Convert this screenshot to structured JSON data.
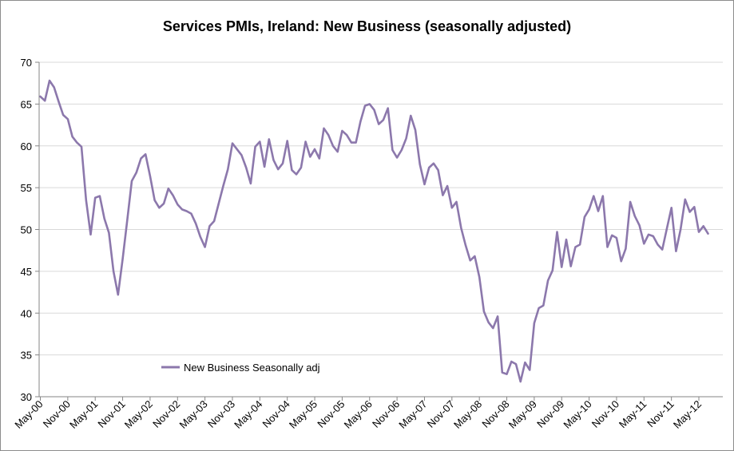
{
  "chart_data": {
    "type": "line",
    "title": "Services PMIs, Ireland: New Business (seasonally adjusted)",
    "xlabel": "",
    "ylabel": "",
    "ylim": [
      30,
      70
    ],
    "y_ticks": [
      "30",
      "35",
      "40",
      "45",
      "50",
      "55",
      "60",
      "65",
      "70"
    ],
    "x_tick_labels": [
      "May-00",
      "Nov-00",
      "May-01",
      "Nov-01",
      "May-02",
      "Nov-02",
      "May-03",
      "Nov-03",
      "May-04",
      "Nov-04",
      "May-05",
      "Nov-05",
      "May-06",
      "Nov-06",
      "May-07",
      "Nov-07",
      "May-08",
      "Nov-08",
      "May-09",
      "Nov-09",
      "May-10",
      "Nov-10",
      "May-11",
      "Nov-11",
      "May-12"
    ],
    "grid": true,
    "legend_position": "lower-left",
    "line_color": "#8C78AC",
    "series": [
      {
        "name": "New Business Seasonally adj",
        "start": "May-00",
        "values": [
          65.9,
          65.4,
          67.8,
          67.0,
          65.3,
          63.7,
          63.2,
          61.1,
          60.4,
          59.9,
          53.5,
          49.4,
          53.8,
          54.0,
          51.3,
          49.6,
          45.0,
          42.2,
          46.5,
          51.1,
          55.8,
          56.8,
          58.5,
          59.0,
          56.4,
          53.5,
          52.6,
          53.1,
          54.9,
          54.1,
          53.0,
          52.4,
          52.2,
          51.9,
          50.7,
          49.1,
          47.9,
          50.4,
          51.0,
          53.1,
          55.2,
          57.2,
          60.3,
          59.6,
          58.9,
          57.4,
          55.5,
          59.9,
          60.5,
          57.5,
          60.8,
          58.3,
          57.2,
          57.9,
          60.6,
          57.1,
          56.6,
          57.4,
          60.5,
          58.7,
          59.6,
          58.5,
          62.1,
          61.3,
          60.0,
          59.3,
          61.8,
          61.3,
          60.4,
          60.4,
          62.9,
          64.8,
          65.0,
          64.3,
          62.6,
          63.1,
          64.5,
          59.5,
          58.6,
          59.5,
          60.9,
          63.6,
          61.9,
          57.8,
          55.4,
          57.4,
          57.9,
          57.1,
          54.1,
          55.2,
          52.6,
          53.3,
          50.2,
          48.1,
          46.3,
          46.8,
          44.3,
          40.2,
          38.9,
          38.2,
          39.6,
          32.9,
          32.7,
          34.2,
          33.9,
          31.8,
          34.1,
          33.2,
          38.8,
          40.6,
          40.9,
          43.9,
          45.1,
          49.7,
          45.5,
          48.8,
          45.6,
          47.9,
          48.2,
          51.5,
          52.4,
          54.0,
          52.2,
          54.0,
          47.9,
          49.3,
          49.0,
          46.2,
          47.7,
          53.3,
          51.6,
          50.5,
          48.3,
          49.4,
          49.2,
          48.2,
          47.6,
          50.1,
          52.6,
          47.4,
          50.0,
          53.6,
          52.1,
          52.7,
          49.7,
          50.4,
          49.5
        ]
      }
    ]
  }
}
